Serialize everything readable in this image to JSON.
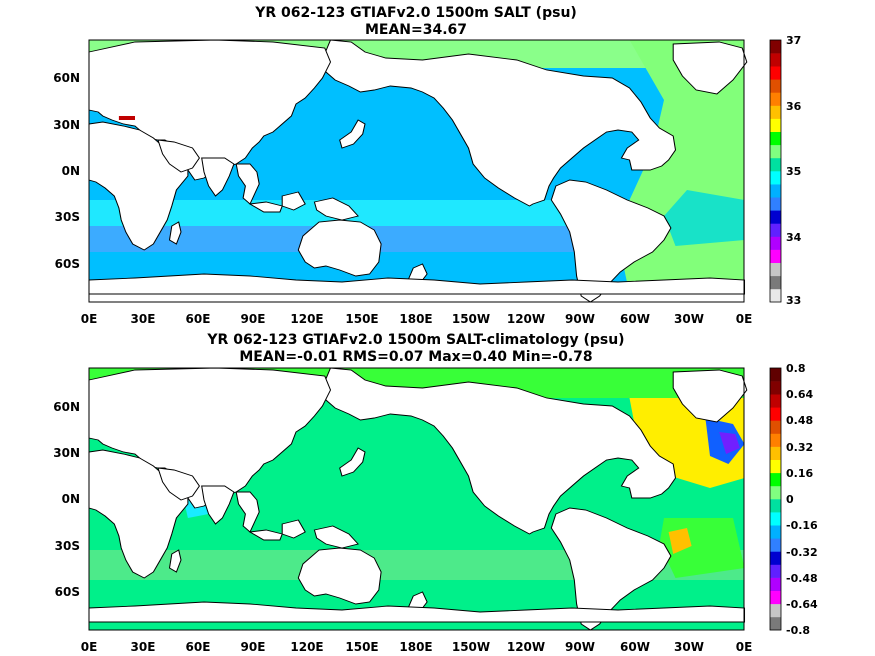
{
  "panels": [
    {
      "title_line1": "YR 062-123 GTIAFv2.0 1500m SALT (psu)",
      "title_line2": "MEAN=34.67",
      "lat_ticks": [
        "60N",
        "30N",
        "0N",
        "30S",
        "60S"
      ],
      "lon_ticks": [
        "0E",
        "30E",
        "60E",
        "90E",
        "120E",
        "150E",
        "180E",
        "150W",
        "120W",
        "90W",
        "60W",
        "30W",
        "0E"
      ],
      "colorbar": {
        "labels": [
          "37",
          "36",
          "35",
          "34",
          "33"
        ],
        "colors": [
          "#e8e8e8",
          "#7a7a7a",
          "#c6c6c6",
          "#ff00ff",
          "#b000ff",
          "#6020ff",
          "#0000d0",
          "#3080ff",
          "#00b0ff",
          "#00ffff",
          "#00e0a0",
          "#80ff80",
          "#00ff00",
          "#ffff00",
          "#ffc000",
          "#ff8000",
          "#e05000",
          "#ff0000",
          "#c00000",
          "#800000"
        ]
      },
      "fills": {
        "ocean": "#00bfff",
        "south_band": "#3cabff",
        "indian": "#1fe8ff",
        "arctic": "#8aff8a",
        "atlantic": "#82ff7a",
        "atlantic_deep": "#18e2c8",
        "med": "#c00000"
      }
    },
    {
      "title_line1": "YR 062-123 GTIAFv2.0 1500m SALT-climatology (psu)",
      "title_line2": "MEAN=-0.01   RMS=0.07   Max=0.40   Min=-0.78",
      "lat_ticks": [
        "60N",
        "30N",
        "0N",
        "30S",
        "60S"
      ],
      "lon_ticks": [
        "0E",
        "30E",
        "60E",
        "90E",
        "120E",
        "150E",
        "180E",
        "150W",
        "120W",
        "90W",
        "60W",
        "30W",
        "0E"
      ],
      "colorbar": {
        "labels": [
          "0.8",
          "0.64",
          "0.48",
          "0.32",
          "0.16",
          "0",
          "-0.16",
          "-0.32",
          "-0.48",
          "-0.64",
          "-0.8"
        ],
        "colors": [
          "#7a7a7a",
          "#c6c6c6",
          "#ff00ff",
          "#b000ff",
          "#6020ff",
          "#0000d0",
          "#3080ff",
          "#00b0ff",
          "#00ffff",
          "#00e0a0",
          "#80ff80",
          "#00ff00",
          "#ffff00",
          "#ffc000",
          "#ff8000",
          "#e05000",
          "#ff0000",
          "#c00000",
          "#800000",
          "#600000"
        ]
      },
      "fills": {
        "ocean": "#00f08a",
        "band": "#4dea8a",
        "cyan": "#19ecff",
        "yellow": "#ffee00",
        "orange": "#ffc000",
        "blue": "#1060ff",
        "purple": "#7020ff",
        "green": "#38ff38"
      }
    }
  ]
}
